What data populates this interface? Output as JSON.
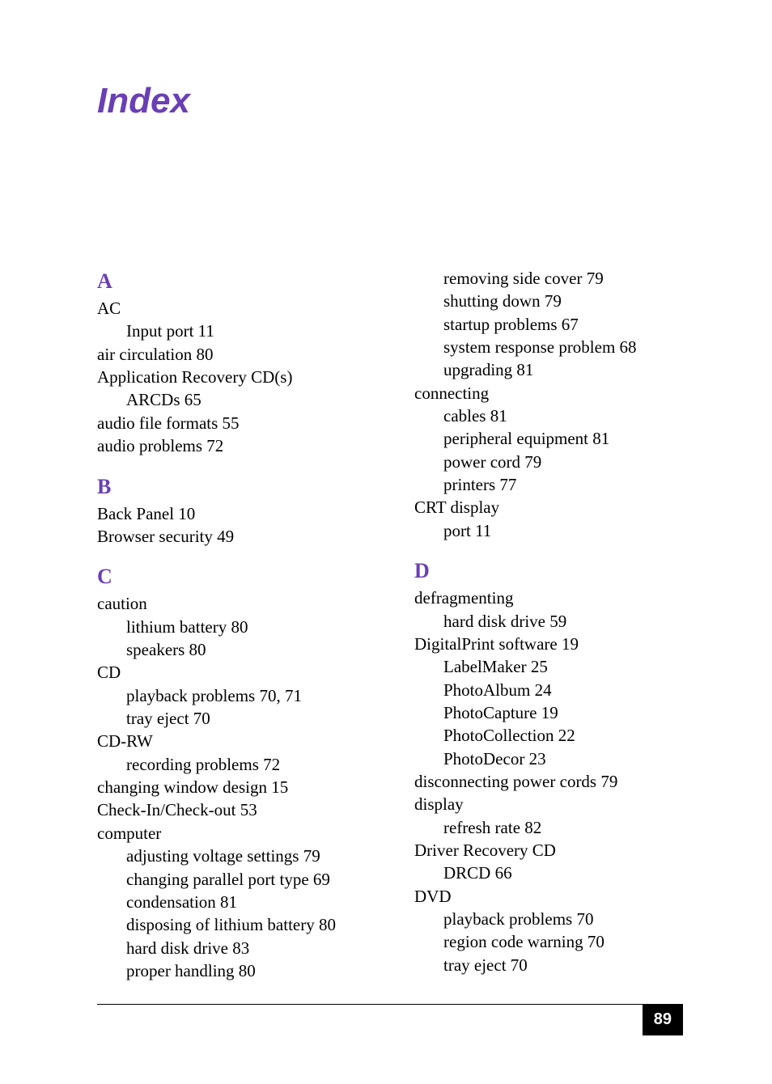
{
  "title": "Index",
  "page_number": "89",
  "colors": {
    "accent": "#6a3fb5",
    "text": "#000000",
    "background": "#ffffff",
    "badge_bg": "#000000",
    "badge_text": "#ffffff"
  },
  "columns": [
    {
      "blocks": [
        {
          "letter": "A",
          "entries": [
            {
              "indent": 0,
              "text": "AC"
            },
            {
              "indent": 1,
              "text": "Input port 11"
            },
            {
              "indent": 0,
              "text": "air circulation 80"
            },
            {
              "indent": 0,
              "text": "Application Recovery CD(s)"
            },
            {
              "indent": 1,
              "text": "ARCDs 65"
            },
            {
              "indent": 0,
              "text": "audio file formats 55"
            },
            {
              "indent": 0,
              "text": "audio problems 72"
            }
          ]
        },
        {
          "letter": "B",
          "entries": [
            {
              "indent": 0,
              "text": "Back Panel 10"
            },
            {
              "indent": 0,
              "text": "Browser security 49"
            }
          ]
        },
        {
          "letter": "C",
          "entries": [
            {
              "indent": 0,
              "text": "caution"
            },
            {
              "indent": 1,
              "text": "lithium battery 80"
            },
            {
              "indent": 1,
              "text": "speakers 80"
            },
            {
              "indent": 0,
              "text": "CD"
            },
            {
              "indent": 1,
              "text": "playback problems 70, 71"
            },
            {
              "indent": 1,
              "text": "tray eject 70"
            },
            {
              "indent": 0,
              "text": "CD-RW"
            },
            {
              "indent": 1,
              "text": "recording problems 72"
            },
            {
              "indent": 0,
              "text": "changing window design 15"
            },
            {
              "indent": 0,
              "text": "Check-In/Check-out 53"
            },
            {
              "indent": 0,
              "text": "computer"
            },
            {
              "indent": 1,
              "text": "adjusting voltage settings 79"
            },
            {
              "indent": 1,
              "text": "changing parallel port type 69"
            },
            {
              "indent": 1,
              "text": "condensation 81"
            },
            {
              "indent": 1,
              "text": "disposing of lithium battery 80"
            },
            {
              "indent": 1,
              "text": "hard disk drive 83"
            },
            {
              "indent": 1,
              "text": "proper handling 80"
            }
          ]
        }
      ]
    },
    {
      "blocks": [
        {
          "letter": null,
          "entries": [
            {
              "indent": 1,
              "text": "removing side cover 79"
            },
            {
              "indent": 1,
              "text": "shutting down 79"
            },
            {
              "indent": 1,
              "text": "startup problems 67"
            },
            {
              "indent": 1,
              "text": "system response problem 68"
            },
            {
              "indent": 1,
              "text": "upgrading 81"
            },
            {
              "indent": 0,
              "text": "connecting"
            },
            {
              "indent": 1,
              "text": "cables 81"
            },
            {
              "indent": 1,
              "text": "peripheral equipment 81"
            },
            {
              "indent": 1,
              "text": "power cord 79"
            },
            {
              "indent": 1,
              "text": "printers 77"
            },
            {
              "indent": 0,
              "text": "CRT display"
            },
            {
              "indent": 1,
              "text": "port 11"
            }
          ]
        },
        {
          "letter": "D",
          "entries": [
            {
              "indent": 0,
              "text": "defragmenting"
            },
            {
              "indent": 1,
              "text": "hard disk drive 59"
            },
            {
              "indent": 0,
              "text": "DigitalPrint software 19"
            },
            {
              "indent": 1,
              "text": "LabelMaker 25"
            },
            {
              "indent": 1,
              "text": "PhotoAlbum 24"
            },
            {
              "indent": 1,
              "text": "PhotoCapture 19"
            },
            {
              "indent": 1,
              "text": "PhotoCollection 22"
            },
            {
              "indent": 1,
              "text": "PhotoDecor 23"
            },
            {
              "indent": 0,
              "text": "disconnecting power cords 79"
            },
            {
              "indent": 0,
              "text": "display"
            },
            {
              "indent": 1,
              "text": "refresh rate 82"
            },
            {
              "indent": 0,
              "text": "Driver Recovery CD"
            },
            {
              "indent": 1,
              "text": "DRCD 66"
            },
            {
              "indent": 0,
              "text": "DVD"
            },
            {
              "indent": 1,
              "text": "playback problems 70"
            },
            {
              "indent": 1,
              "text": "region code warning 70"
            },
            {
              "indent": 1,
              "text": "tray eject 70"
            }
          ]
        }
      ]
    }
  ]
}
